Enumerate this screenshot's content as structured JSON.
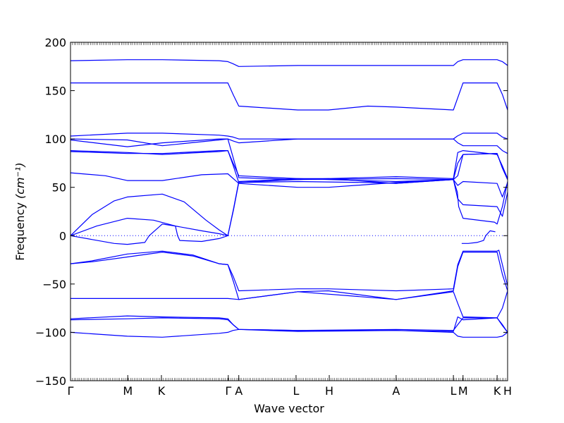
{
  "chart_data": {
    "type": "line",
    "xlabel": "Wave vector",
    "ylabel": "Frequency",
    "ylabel_unit": "(cm⁻¹)",
    "ylim": [
      -150,
      200
    ],
    "yticks": [
      -150,
      -100,
      -50,
      0,
      50,
      100,
      150,
      200
    ],
    "xlim": [
      0,
      1
    ],
    "kpoints": [
      {
        "label": "Γ",
        "x": 0.0
      },
      {
        "label": "M",
        "x": 0.131
      },
      {
        "label": "K",
        "x": 0.208
      },
      {
        "label": "Γ",
        "x": 0.361
      },
      {
        "label": "A",
        "x": 0.385
      },
      {
        "label": "L",
        "x": 0.516
      },
      {
        "label": "H",
        "x": 0.592
      },
      {
        "label": "A",
        "x": 0.745
      },
      {
        "label": "L",
        "x": 0.876
      },
      {
        "label": "M",
        "x": 0.898
      },
      {
        "label": "K",
        "x": 0.976
      },
      {
        "label": "H",
        "x": 1.0
      }
    ],
    "zero_line": true,
    "line_color": "#0000ff",
    "series": [
      {
        "points": [
          [
            0,
            181
          ],
          [
            0.13,
            182
          ],
          [
            0.21,
            182
          ],
          [
            0.34,
            181
          ],
          [
            0.36,
            180
          ],
          [
            0.371,
            178
          ],
          [
            0.385,
            175
          ],
          [
            0.52,
            176
          ],
          [
            0.74,
            176
          ],
          [
            0.876,
            176
          ],
          [
            0.886,
            180
          ],
          [
            0.898,
            182
          ],
          [
            0.976,
            182
          ],
          [
            0.988,
            180
          ],
          [
            1.0,
            176
          ]
        ]
      },
      {
        "points": [
          [
            0,
            158
          ],
          [
            0.13,
            158
          ],
          [
            0.21,
            158
          ],
          [
            0.36,
            158
          ],
          [
            0.373,
            145
          ],
          [
            0.385,
            134
          ],
          [
            0.52,
            130
          ],
          [
            0.59,
            130
          ],
          [
            0.68,
            134
          ],
          [
            0.745,
            133
          ],
          [
            0.876,
            130
          ],
          [
            0.898,
            158
          ],
          [
            0.976,
            158
          ],
          [
            0.988,
            146
          ],
          [
            1.0,
            130
          ]
        ]
      },
      {
        "points": [
          [
            0,
            103
          ],
          [
            0.13,
            106
          ],
          [
            0.21,
            106
          ],
          [
            0.34,
            104
          ],
          [
            0.36,
            103
          ],
          [
            0.372,
            102
          ],
          [
            0.385,
            100
          ],
          [
            0.52,
            100
          ],
          [
            0.745,
            100
          ],
          [
            0.876,
            100
          ],
          [
            0.885,
            103
          ],
          [
            0.898,
            106
          ],
          [
            0.976,
            106
          ],
          [
            0.988,
            102
          ],
          [
            1.0,
            100
          ]
        ]
      },
      {
        "points": [
          [
            0,
            100
          ],
          [
            0.13,
            99
          ],
          [
            0.21,
            93
          ],
          [
            0.34,
            99
          ],
          [
            0.36,
            100
          ],
          [
            0.372,
            98
          ],
          [
            0.385,
            96
          ],
          [
            0.52,
            100
          ],
          [
            0.745,
            100
          ],
          [
            0.876,
            100
          ],
          [
            0.886,
            96
          ],
          [
            0.898,
            93
          ],
          [
            0.976,
            93
          ],
          [
            0.988,
            88
          ],
          [
            1.0,
            85
          ]
        ]
      },
      {
        "points": [
          [
            0,
            88
          ],
          [
            0.13,
            86
          ],
          [
            0.21,
            84
          ],
          [
            0.34,
            87
          ],
          [
            0.36,
            88
          ],
          [
            0.372,
            75
          ],
          [
            0.385,
            62
          ],
          [
            0.52,
            59
          ],
          [
            0.59,
            59
          ],
          [
            0.745,
            61
          ],
          [
            0.876,
            59
          ],
          [
            0.886,
            86
          ],
          [
            0.898,
            88
          ],
          [
            0.976,
            84
          ],
          [
            0.988,
            72
          ],
          [
            1.0,
            59
          ]
        ]
      },
      {
        "points": [
          [
            0,
            99
          ],
          [
            0.13,
            92
          ],
          [
            0.21,
            96
          ],
          [
            0.34,
            100
          ],
          [
            0.36,
            100
          ],
          [
            0.372,
            81
          ],
          [
            0.385,
            60
          ],
          [
            0.52,
            58
          ],
          [
            0.745,
            59
          ],
          [
            0.876,
            58
          ],
          [
            0.886,
            75
          ],
          [
            0.898,
            84
          ],
          [
            0.976,
            85
          ],
          [
            0.988,
            70
          ],
          [
            1.0,
            58
          ]
        ]
      },
      {
        "points": [
          [
            0,
            87
          ],
          [
            0.13,
            85
          ],
          [
            0.21,
            85
          ],
          [
            0.34,
            88
          ],
          [
            0.36,
            88
          ],
          [
            0.372,
            73
          ],
          [
            0.385,
            55
          ],
          [
            0.52,
            58
          ],
          [
            0.59,
            59
          ],
          [
            0.745,
            54
          ],
          [
            0.876,
            58
          ],
          [
            0.886,
            62
          ],
          [
            0.898,
            84
          ],
          [
            0.976,
            85
          ],
          [
            0.988,
            70
          ],
          [
            1.0,
            58
          ]
        ]
      },
      {
        "points": [
          [
            0,
            65
          ],
          [
            0.08,
            62
          ],
          [
            0.13,
            57
          ],
          [
            0.21,
            57
          ],
          [
            0.3,
            63
          ],
          [
            0.36,
            64
          ],
          [
            0.37,
            60
          ],
          [
            0.385,
            54
          ],
          [
            0.52,
            50
          ],
          [
            0.59,
            50
          ],
          [
            0.745,
            55
          ],
          [
            0.876,
            58
          ],
          [
            0.886,
            52
          ],
          [
            0.898,
            56
          ],
          [
            0.976,
            54
          ],
          [
            0.988,
            40
          ],
          [
            1.0,
            55
          ]
        ]
      },
      {
        "points": [
          [
            0,
            0
          ],
          [
            0.05,
            22
          ],
          [
            0.1,
            36
          ],
          [
            0.13,
            40
          ],
          [
            0.21,
            43
          ],
          [
            0.26,
            35
          ],
          [
            0.31,
            16
          ],
          [
            0.34,
            6
          ],
          [
            0.36,
            0
          ],
          [
            0.373,
            27
          ],
          [
            0.385,
            55
          ],
          [
            0.52,
            56
          ],
          [
            0.68,
            55
          ],
          [
            0.745,
            54
          ],
          [
            0.876,
            58
          ],
          [
            0.886,
            38
          ],
          [
            0.898,
            32
          ],
          [
            0.976,
            30
          ],
          [
            0.988,
            20
          ],
          [
            1.0,
            45
          ]
        ]
      },
      {
        "points": [
          [
            0,
            0
          ],
          [
            0.06,
            10
          ],
          [
            0.13,
            18
          ],
          [
            0.19,
            16
          ],
          [
            0.24,
            10
          ],
          [
            0.3,
            5
          ],
          [
            0.34,
            2
          ],
          [
            0.36,
            0
          ],
          [
            0.373,
            28
          ],
          [
            0.385,
            56
          ],
          [
            0.52,
            59
          ],
          [
            0.745,
            56
          ],
          [
            0.876,
            58
          ],
          [
            0.885,
            45
          ],
          [
            0.888,
            30
          ],
          [
            0.898,
            18
          ],
          [
            0.97,
            14
          ],
          [
            0.976,
            12
          ],
          [
            0.988,
            30
          ],
          [
            1.0,
            56
          ]
        ]
      },
      {
        "points": [
          [
            0,
            0
          ],
          [
            0.05,
            -4
          ],
          [
            0.1,
            -8
          ],
          [
            0.13,
            -9
          ],
          [
            0.17,
            -7
          ],
          [
            0.18,
            0
          ],
          [
            0.21,
            12
          ],
          [
            0.24,
            10
          ],
          [
            0.245,
            0
          ],
          [
            0.25,
            -5
          ],
          [
            0.3,
            -6
          ],
          [
            0.34,
            -3
          ],
          [
            0.36,
            0
          ]
        ]
      },
      {
        "points": [
          [
            0.895,
            -8
          ],
          [
            0.91,
            -8
          ],
          [
            0.93,
            -7
          ],
          [
            0.945,
            -5
          ],
          [
            0.95,
            0
          ],
          [
            0.96,
            5
          ],
          [
            0.972,
            4
          ]
        ]
      },
      {
        "points": [
          [
            0,
            -29
          ],
          [
            0.05,
            -26
          ],
          [
            0.13,
            -19
          ],
          [
            0.21,
            -16
          ],
          [
            0.28,
            -20
          ],
          [
            0.34,
            -29
          ],
          [
            0.36,
            -30
          ],
          [
            0.373,
            -43
          ],
          [
            0.385,
            -57
          ],
          [
            0.52,
            -55
          ],
          [
            0.59,
            -55
          ],
          [
            0.745,
            -57
          ],
          [
            0.876,
            -55
          ],
          [
            0.886,
            -30
          ],
          [
            0.898,
            -16
          ],
          [
            0.976,
            -16
          ],
          [
            0.98,
            -15
          ],
          [
            0.988,
            -30
          ],
          [
            1.0,
            -52
          ]
        ]
      },
      {
        "points": [
          [
            0,
            -29
          ],
          [
            0.05,
            -27
          ],
          [
            0.13,
            -22
          ],
          [
            0.21,
            -17
          ],
          [
            0.28,
            -21
          ],
          [
            0.34,
            -29
          ],
          [
            0.36,
            -30
          ],
          [
            0.373,
            -48
          ],
          [
            0.385,
            -66
          ],
          [
            0.52,
            -58
          ],
          [
            0.59,
            -57
          ],
          [
            0.745,
            -66
          ],
          [
            0.876,
            -57
          ],
          [
            0.886,
            -32
          ],
          [
            0.898,
            -17
          ],
          [
            0.976,
            -17
          ],
          [
            0.988,
            -40
          ],
          [
            1.0,
            -57
          ]
        ]
      },
      {
        "points": [
          [
            0,
            -65
          ],
          [
            0.13,
            -65
          ],
          [
            0.21,
            -65
          ],
          [
            0.36,
            -65
          ],
          [
            0.385,
            -66
          ],
          [
            0.52,
            -58
          ],
          [
            0.745,
            -66
          ],
          [
            0.876,
            -58
          ],
          [
            0.886,
            -70
          ],
          [
            0.898,
            -84
          ],
          [
            0.976,
            -85
          ],
          [
            0.988,
            -75
          ],
          [
            1.0,
            -57
          ]
        ]
      },
      {
        "points": [
          [
            0,
            -86
          ],
          [
            0.13,
            -83
          ],
          [
            0.21,
            -84
          ],
          [
            0.34,
            -85
          ],
          [
            0.36,
            -86
          ],
          [
            0.372,
            -92
          ],
          [
            0.385,
            -97
          ],
          [
            0.52,
            -98
          ],
          [
            0.745,
            -97
          ],
          [
            0.876,
            -98
          ],
          [
            0.886,
            -92
          ],
          [
            0.898,
            -85
          ],
          [
            0.976,
            -85
          ],
          [
            0.988,
            -93
          ],
          [
            1.0,
            -100
          ]
        ]
      },
      {
        "points": [
          [
            0,
            -87
          ],
          [
            0.13,
            -86
          ],
          [
            0.21,
            -85
          ],
          [
            0.34,
            -86
          ],
          [
            0.36,
            -87
          ],
          [
            0.372,
            -92
          ],
          [
            0.385,
            -97
          ],
          [
            0.52,
            -99
          ],
          [
            0.745,
            -98
          ],
          [
            0.876,
            -99
          ],
          [
            0.886,
            -84
          ],
          [
            0.898,
            -87
          ],
          [
            0.976,
            -85
          ],
          [
            0.988,
            -92
          ],
          [
            1.0,
            -100
          ]
        ]
      },
      {
        "points": [
          [
            0,
            -100
          ],
          [
            0.13,
            -104
          ],
          [
            0.21,
            -105
          ],
          [
            0.34,
            -101
          ],
          [
            0.36,
            -100
          ],
          [
            0.372,
            -98
          ],
          [
            0.385,
            -97
          ],
          [
            0.52,
            -98
          ],
          [
            0.745,
            -98
          ],
          [
            0.876,
            -100
          ],
          [
            0.886,
            -104
          ],
          [
            0.898,
            -105
          ],
          [
            0.976,
            -105
          ],
          [
            0.988,
            -104
          ],
          [
            1.0,
            -100
          ]
        ]
      }
    ]
  }
}
